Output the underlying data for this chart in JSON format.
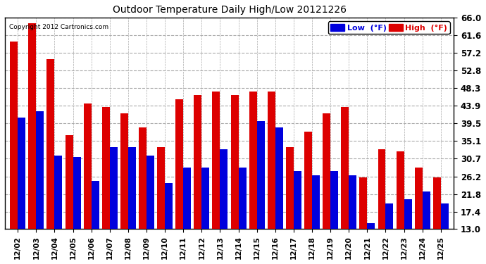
{
  "title": "Outdoor Temperature Daily High/Low 20121226",
  "copyright": "Copyright 2012 Cartronics.com",
  "legend_low": "Low  (°F)",
  "legend_high": "High  (°F)",
  "dates": [
    "12/02",
    "12/03",
    "12/04",
    "12/05",
    "12/06",
    "12/07",
    "12/08",
    "12/09",
    "12/10",
    "12/11",
    "12/12",
    "12/13",
    "12/14",
    "12/15",
    "12/16",
    "12/17",
    "12/18",
    "12/19",
    "12/20",
    "12/21",
    "12/22",
    "12/23",
    "12/24",
    "12/25"
  ],
  "highs": [
    60.0,
    64.5,
    55.5,
    36.5,
    44.5,
    43.5,
    42.0,
    38.5,
    33.5,
    45.5,
    46.5,
    47.5,
    46.5,
    47.5,
    47.5,
    33.5,
    37.5,
    42.0,
    43.5,
    26.0,
    33.0,
    32.5,
    28.5,
    26.0
  ],
  "lows": [
    41.0,
    42.5,
    31.5,
    31.0,
    25.0,
    33.5,
    33.5,
    31.5,
    24.5,
    28.5,
    28.5,
    33.0,
    28.5,
    40.0,
    38.5,
    27.5,
    26.5,
    27.5,
    26.5,
    14.5,
    19.5,
    20.5,
    22.5,
    19.5
  ],
  "low_color": "#0000dd",
  "high_color": "#dd0000",
  "bg_color": "#ffffff",
  "plot_bg": "#ffffff",
  "grid_color": "#aaaaaa",
  "yticks": [
    13.0,
    17.4,
    21.8,
    26.2,
    30.7,
    35.1,
    39.5,
    43.9,
    48.3,
    52.8,
    57.2,
    61.6,
    66.0
  ],
  "ymin": 13.0,
  "ymax": 66.0,
  "bar_width": 0.42,
  "figwidth": 6.9,
  "figheight": 3.75,
  "dpi": 100
}
